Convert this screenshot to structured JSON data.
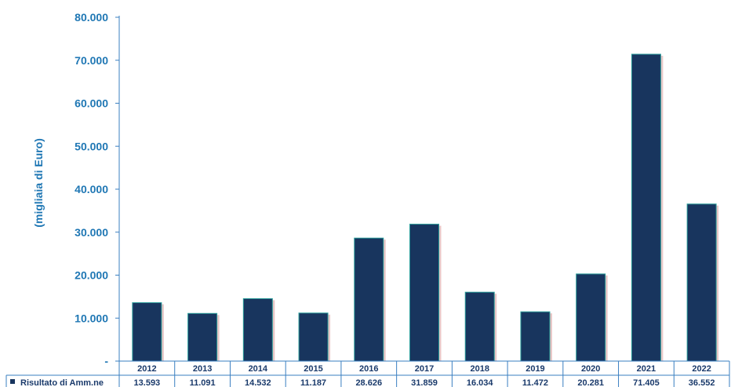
{
  "chart_data": {
    "type": "bar",
    "ylabel": "(migliaia di Euro)",
    "ylim": [
      0,
      80000
    ],
    "y_ticks": [
      {
        "value": 0,
        "label": "-"
      },
      {
        "value": 10000,
        "label": "10.000"
      },
      {
        "value": 20000,
        "label": "20.000"
      },
      {
        "value": 30000,
        "label": "30.000"
      },
      {
        "value": 40000,
        "label": "40.000"
      },
      {
        "value": 50000,
        "label": "50.000"
      },
      {
        "value": 60000,
        "label": "60.000"
      },
      {
        "value": 70000,
        "label": "70.000"
      },
      {
        "value": 80000,
        "label": "80.000"
      }
    ],
    "categories": [
      "2012",
      "2013",
      "2014",
      "2015",
      "2016",
      "2017",
      "2018",
      "2019",
      "2020",
      "2021",
      "2022"
    ],
    "series": [
      {
        "name": "Risultato di Amm.ne",
        "values": [
          13593,
          11091,
          14532,
          11187,
          28626,
          31859,
          16034,
          11472,
          20281,
          71405,
          36552
        ],
        "value_labels": [
          "13.593",
          "11.091",
          "14.532",
          "11.187",
          "28.626",
          "31.859",
          "16.034",
          "11.472",
          "20.281",
          "71.405",
          "36.552"
        ]
      }
    ],
    "grid": false,
    "legend": "data-table"
  },
  "colors": {
    "bar": "#18355e",
    "bar_shadow": "#e8c7c7",
    "axis": "#3a7fc1",
    "text": "#1f77b4",
    "table_text": "#1a3a6b"
  }
}
